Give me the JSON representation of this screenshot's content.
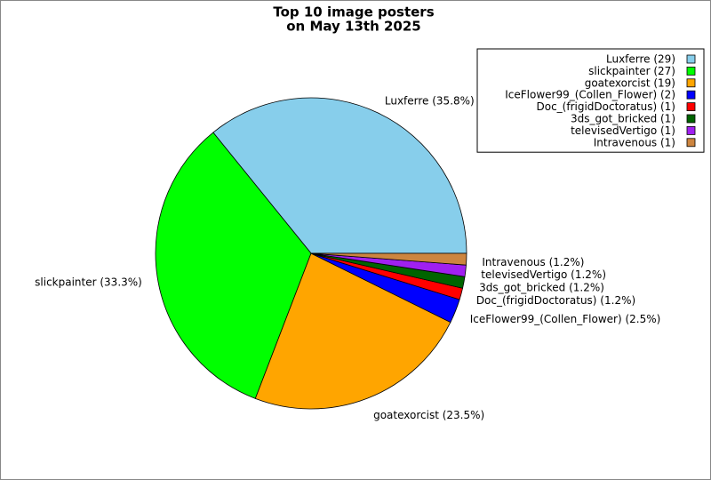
{
  "chart_data": {
    "type": "pie",
    "title": [
      "Top 10 image posters",
      "on May 13th 2025"
    ],
    "categories": [
      "Luxferre (29)",
      "slickpainter (27)",
      "goatexorcist (19)",
      "IceFlower99_(Collen_Flower) (2)",
      "Doc_(frigidDoctoratus) (1)",
      "3ds_got_bricked (1)",
      "televisedVertigo (1)",
      "Intravenous (1)"
    ],
    "values": [
      35.8,
      33.3,
      23.5,
      2.5,
      1.2,
      1.2,
      1.2,
      1.2
    ],
    "value_labels": [
      "Luxferre (35.8%)",
      "slickpainter (33.3%)",
      "goatexorcist (23.5%)",
      "IceFlower99_(Collen_Flower) (2.5%)",
      "Doc_(frigidDoctoratus) (1.2%)",
      "3ds_got_bricked (1.2%)",
      "televisedVertigo (1.2%)",
      "Intravenous (1.2%)"
    ],
    "colors": [
      "#87ceeb",
      "#00ff00",
      "#ffa500",
      "#0000ff",
      "#ff0000",
      "#006400",
      "#a020f0",
      "#cd853f"
    ],
    "legend": "upper right"
  }
}
